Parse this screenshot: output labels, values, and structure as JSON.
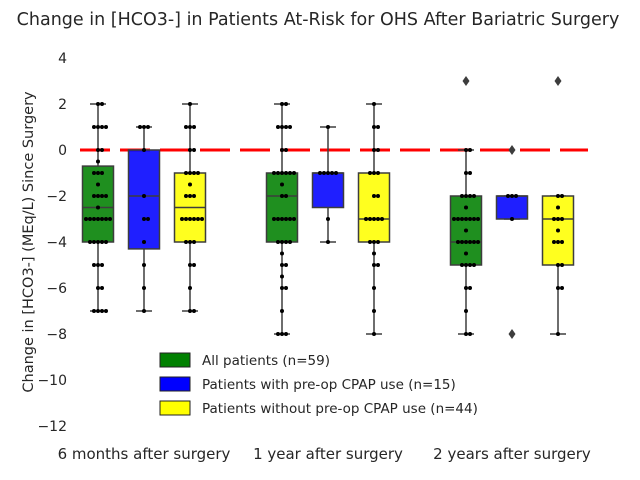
{
  "chart_data": {
    "type": "box",
    "title": "Change in [HCO3-] in Patients At-Risk for OHS After Bariatric Surgery",
    "xlabel": "",
    "ylabel": "Change in [HCO3-] (MEq/L) Since Surgery",
    "ylim": [
      -13,
      5
    ],
    "yticks": [
      4,
      2,
      0,
      -2,
      -4,
      -6,
      -8,
      -10,
      -12
    ],
    "categories": [
      "6 months after surgery",
      "1 year after surgery",
      "2 years after surgery"
    ],
    "reference_line": {
      "y": 0,
      "color": "#ff0000",
      "style": "dashed"
    },
    "grid": false,
    "legend_position": "lower-center",
    "series": [
      {
        "name": "All patients (n=59)",
        "color": "#008000",
        "boxes": [
          {
            "q1": -4,
            "median": -2.5,
            "q3": -0.7,
            "whisker_low": -7,
            "whisker_high": 2,
            "outliers": [],
            "points": [
              2,
              2,
              1,
              1,
              1,
              1,
              0,
              0,
              -0.5,
              -1,
              -1,
              -1,
              -1.5,
              -2,
              -2,
              -2,
              -2,
              -2.5,
              -3,
              -3,
              -3,
              -3,
              -3,
              -3,
              -3,
              -4,
              -4,
              -4,
              -4,
              -4,
              -5,
              -5,
              -5,
              -6,
              -6,
              -7,
              -7,
              -7,
              -7
            ]
          },
          {
            "q1": -4,
            "median": -2,
            "q3": -1,
            "whisker_low": -8,
            "whisker_high": 2,
            "outliers": [],
            "points": [
              2,
              2,
              1,
              1,
              1,
              1,
              0,
              0,
              -1,
              -1,
              -1,
              -1,
              -1,
              -1,
              -1.5,
              -2,
              -2,
              -3,
              -3,
              -3,
              -3,
              -3,
              -3,
              -4,
              -4,
              -4,
              -4,
              -4.5,
              -5,
              -5,
              -5.5,
              -6,
              -6,
              -7,
              -8,
              -8,
              -8
            ]
          },
          {
            "q1": -5,
            "median": -4,
            "q3": -2,
            "whisker_low": -8,
            "whisker_high": 0,
            "outliers": [
              3
            ],
            "points": [
              0,
              0,
              -1,
              -1,
              -2,
              -2,
              -2,
              -2,
              -2.5,
              -3,
              -3,
              -3,
              -3,
              -3,
              -3,
              -3,
              -3.5,
              -4,
              -4,
              -4,
              -4,
              -4,
              -4,
              -4.5,
              -5,
              -5,
              -5,
              -5,
              -6,
              -6,
              -7,
              -8,
              -8
            ]
          }
        ]
      },
      {
        "name": "Patients with pre-op CPAP use (n=15)",
        "color": "#0000ff",
        "boxes": [
          {
            "q1": -4.3,
            "median": -2,
            "q3": 0,
            "whisker_low": -7,
            "whisker_high": 1,
            "outliers": [],
            "points": [
              1,
              1,
              1,
              0,
              -2,
              -3,
              -3,
              -4,
              -5,
              -6,
              -7
            ]
          },
          {
            "q1": -2.5,
            "median": -1,
            "q3": -1,
            "whisker_low": -4,
            "whisker_high": 1,
            "outliers": [],
            "points": [
              1,
              -1,
              -1,
              -1,
              -1,
              -1,
              -3,
              -4
            ]
          },
          {
            "q1": -3,
            "median": -2,
            "q3": -2,
            "whisker_low": -3,
            "whisker_high": -2,
            "outliers": [
              0,
              -8
            ],
            "points": [
              -2,
              -2,
              -2,
              -3
            ]
          }
        ]
      },
      {
        "name": "Patients without pre-op CPAP use (n=44)",
        "color": "#ffff00",
        "boxes": [
          {
            "q1": -4,
            "median": -2.5,
            "q3": -1,
            "whisker_low": -7,
            "whisker_high": 2,
            "outliers": [],
            "points": [
              2,
              1,
              1,
              1,
              0,
              0,
              -1,
              -1,
              -1,
              -1,
              -1.5,
              -2,
              -2,
              -2,
              -3,
              -3,
              -3,
              -3,
              -3,
              -3,
              -4,
              -4,
              -4,
              -5,
              -5,
              -6,
              -7,
              -7
            ]
          },
          {
            "q1": -4,
            "median": -3,
            "q3": -1,
            "whisker_low": -8,
            "whisker_high": 2,
            "outliers": [],
            "points": [
              2,
              1,
              1,
              0,
              0,
              -1,
              -1,
              -1,
              -2,
              -2,
              -3,
              -3,
              -3,
              -3,
              -3,
              -4,
              -4,
              -4,
              -4.5,
              -5,
              -5,
              -6,
              -7,
              -8
            ]
          },
          {
            "q1": -5,
            "median": -3,
            "q3": -2,
            "whisker_low": -8,
            "whisker_high": -2,
            "outliers": [
              3
            ],
            "points": [
              -2,
              -2,
              -2.5,
              -3,
              -3,
              -3,
              -3.5,
              -4,
              -4,
              -4,
              -5,
              -5,
              -6,
              -6,
              -8
            ]
          }
        ]
      }
    ]
  }
}
